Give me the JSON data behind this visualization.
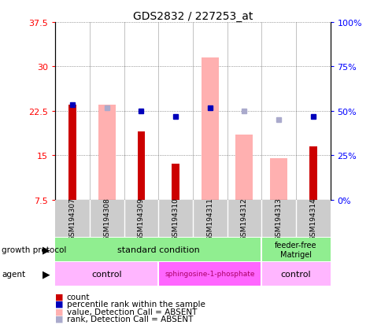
{
  "title": "GDS2832 / 227253_at",
  "samples": [
    "GSM194307",
    "GSM194308",
    "GSM194309",
    "GSM194310",
    "GSM194311",
    "GSM194312",
    "GSM194313",
    "GSM194314"
  ],
  "count_values": [
    23.5,
    null,
    19.0,
    13.5,
    null,
    null,
    null,
    16.5
  ],
  "pink_bar_values": [
    null,
    23.5,
    null,
    null,
    31.5,
    18.5,
    14.5,
    null
  ],
  "blue_square_values": [
    23.5,
    null,
    22.5,
    21.5,
    23.0,
    null,
    null,
    21.5
  ],
  "blue_absent_values": [
    null,
    23.0,
    null,
    null,
    null,
    22.5,
    21.0,
    null
  ],
  "ylim_left": [
    7.5,
    37.5
  ],
  "ylim_right": [
    0,
    100
  ],
  "yticks_left": [
    7.5,
    15.0,
    22.5,
    30.0,
    37.5
  ],
  "ytick_labels_left": [
    "7.5",
    "15",
    "22.5",
    "30",
    "37.5"
  ],
  "yticks_right": [
    0,
    25,
    50,
    75,
    100
  ],
  "ytick_labels_right": [
    "0%",
    "25%",
    "50%",
    "75%",
    "100%"
  ],
  "bar_color_dark_red": "#CC0000",
  "bar_color_pink": "#FFB0B0",
  "sq_color_dark_blue": "#0000BB",
  "sq_color_light_blue": "#AAAACC",
  "grid_color": "#555555",
  "bg_color": "#FFFFFF",
  "sample_bg_color": "#CCCCCC",
  "gp_color": "#90EE90",
  "agent_light": "#FFB6FF",
  "agent_dark": "#FF66FF",
  "sphingo_text_color": "#AA0066"
}
